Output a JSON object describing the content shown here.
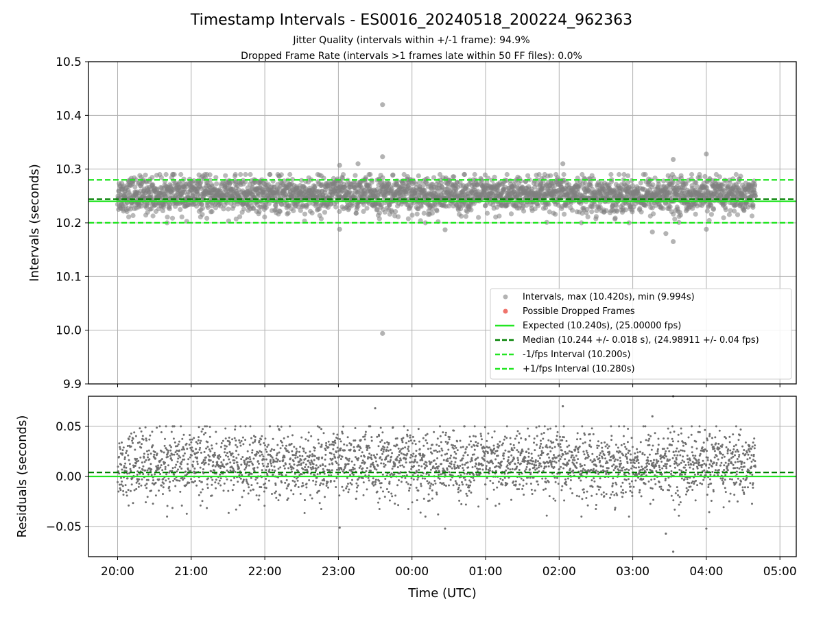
{
  "title": "Timestamp Intervals - ES0016_20240518_200224_962363",
  "subtitle_1": "Jitter Quality (intervals within +/-1 frame): 94.9%",
  "subtitle_2": "Dropped Frame Rate (intervals >1 frames late within 50 FF files): 0.0%",
  "colors": {
    "points": "#808080",
    "dropped": "#e8372c",
    "expected": "#22e622",
    "median": "#008000",
    "fps_bounds": "#22e622",
    "grid": "#b0b0b0"
  },
  "chart_data": [
    {
      "type": "scatter",
      "ylabel": "Intervals (seconds)",
      "ylim": [
        9.9,
        10.5
      ],
      "yticks": [
        "9.9",
        "10.0",
        "10.1",
        "10.2",
        "10.3",
        "10.4",
        "10.5"
      ],
      "x_range_hours": [
        "20:00",
        "04:40"
      ],
      "grid": true,
      "legend_placement": "lower-right",
      "legend": [
        "Intervals, max (10.420s), min (9.994s)",
        "Possible Dropped Frames",
        "Expected (10.240s), (25.00000 fps)",
        "Median (10.244 +/- 0.018 s), (24.98911 +/- 0.04 fps)",
        "-1/fps Interval (10.200s)",
        "+1/fps Interval (10.280s)"
      ],
      "series": [
        {
          "name": "Intervals",
          "typical_range": [
            10.2,
            10.29
          ],
          "center": 10.252
        },
        {
          "name": "Possible Dropped Frames",
          "values": []
        }
      ],
      "reference_lines": [
        {
          "label": "Expected",
          "y": 10.24,
          "style": "solid"
        },
        {
          "label": "Median",
          "y": 10.244,
          "style": "dashed"
        },
        {
          "label": "-1/fps",
          "y": 10.2,
          "style": "dashed"
        },
        {
          "label": "+1/fps",
          "y": 10.28,
          "style": "dashed"
        }
      ],
      "outliers": [
        {
          "x": "23:36",
          "y": 10.42
        },
        {
          "x": "23:36",
          "y": 9.994
        },
        {
          "x": "23:36",
          "y": 10.323
        },
        {
          "x": "04:00",
          "y": 10.328
        },
        {
          "x": "03:33",
          "y": 10.318
        },
        {
          "x": "23:01",
          "y": 10.307
        },
        {
          "x": "23:16",
          "y": 10.31
        },
        {
          "x": "02:03",
          "y": 10.31
        },
        {
          "x": "03:33",
          "y": 10.165
        },
        {
          "x": "23:01",
          "y": 10.188
        },
        {
          "x": "00:27",
          "y": 10.187
        },
        {
          "x": "04:00",
          "y": 10.188
        },
        {
          "x": "03:16",
          "y": 10.183
        },
        {
          "x": "03:27",
          "y": 10.18
        }
      ]
    },
    {
      "type": "scatter",
      "xlabel": "Time (UTC)",
      "ylabel": "Residuals (seconds)",
      "ylim": [
        -0.08,
        0.08
      ],
      "yticks": [
        "−0.05",
        "0.00",
        "0.05"
      ],
      "xticks": [
        "20:00",
        "21:00",
        "22:00",
        "23:00",
        "00:00",
        "01:00",
        "02:00",
        "03:00",
        "04:00",
        "05:00"
      ],
      "grid": true,
      "reference_lines": [
        {
          "label": "Expected",
          "y": 0.0,
          "style": "solid"
        },
        {
          "label": "Median",
          "y": 0.004,
          "style": "dashed"
        }
      ],
      "series": [
        {
          "name": "Residuals",
          "typical_range": [
            -0.04,
            0.05
          ]
        }
      ],
      "outliers": [
        {
          "x": "03:33",
          "y": 0.08
        },
        {
          "x": "03:33",
          "y": -0.075
        },
        {
          "x": "23:30",
          "y": 0.068
        },
        {
          "x": "02:03",
          "y": 0.07
        },
        {
          "x": "03:16",
          "y": 0.06
        },
        {
          "x": "00:27",
          "y": -0.052
        },
        {
          "x": "23:01",
          "y": -0.051
        },
        {
          "x": "04:00",
          "y": -0.052
        },
        {
          "x": "03:27",
          "y": -0.057
        }
      ]
    }
  ]
}
